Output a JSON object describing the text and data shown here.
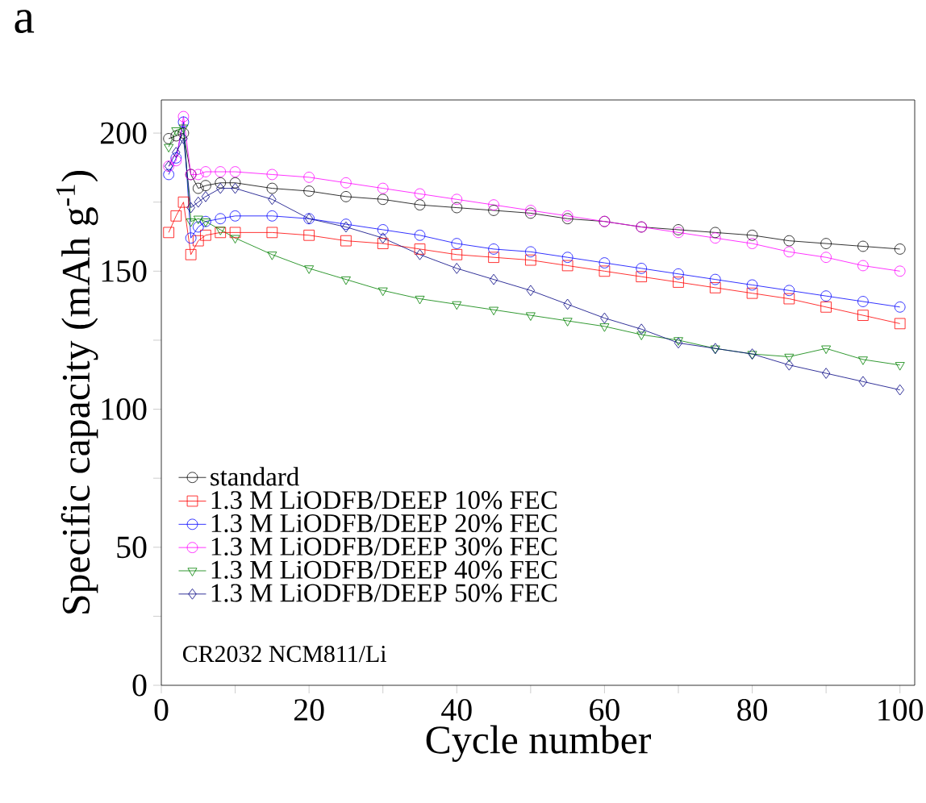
{
  "chart_data": {
    "type": "line",
    "title": "a",
    "xlabel": "Cycle number",
    "ylabel": "Specific capacity (mAh g$^{-1}$)",
    "x": [
      1,
      2,
      3,
      4,
      5,
      6,
      8,
      10,
      15,
      20,
      25,
      30,
      35,
      40,
      45,
      50,
      55,
      60,
      65,
      70,
      75,
      80,
      85,
      90,
      95,
      100
    ],
    "series": [
      {
        "name": "standard",
        "color": "#000000",
        "marker": "circle",
        "values": [
          198,
          199,
          200,
          185,
          180,
          181,
          182,
          182,
          180,
          179,
          177,
          176,
          174,
          173,
          172,
          171,
          169,
          168,
          166,
          165,
          164,
          163,
          161,
          160,
          159,
          158
        ]
      },
      {
        "name": "1.3 M LiODFB/DEEP 10% FEC",
        "color": "#ff0000",
        "marker": "square",
        "values": [
          164,
          170,
          175,
          156,
          161,
          163,
          164,
          164,
          164,
          163,
          161,
          160,
          158,
          156,
          155,
          154,
          152,
          150,
          148,
          146,
          144,
          142,
          140,
          137,
          134,
          131
        ]
      },
      {
        "name": "1.3 M LiODFB/DEEP 20% FEC",
        "color": "#0000ff",
        "marker": "circle",
        "values": [
          185,
          191,
          204,
          162,
          166,
          168,
          169,
          170,
          170,
          169,
          167,
          165,
          163,
          160,
          158,
          157,
          155,
          153,
          151,
          149,
          147,
          145,
          143,
          141,
          139,
          137
        ]
      },
      {
        "name": "1.3 M LiODFB/DEEP 30% FEC",
        "color": "#ff00ff",
        "marker": "circle",
        "values": [
          188,
          190,
          206,
          185,
          185,
          186,
          186,
          186,
          185,
          184,
          182,
          180,
          178,
          176,
          174,
          172,
          170,
          168,
          166,
          164,
          162,
          160,
          157,
          155,
          152,
          150
        ]
      },
      {
        "name": "1.3 M LiODFB/DEEP 40% FEC",
        "color": "#008000",
        "marker": "triangle",
        "values": [
          195,
          201,
          202,
          168,
          169,
          168,
          165,
          162,
          156,
          151,
          147,
          143,
          140,
          138,
          136,
          134,
          132,
          130,
          127,
          125,
          122,
          120,
          119,
          122,
          118,
          116
        ]
      },
      {
        "name": "1.3 M LiODFB/DEEP 50% FEC",
        "color": "#000080",
        "marker": "diamond",
        "values": [
          188,
          193,
          198,
          173,
          175,
          177,
          180,
          180,
          176,
          169,
          166,
          162,
          156,
          151,
          147,
          143,
          138,
          133,
          129,
          124,
          122,
          120,
          116,
          113,
          110,
          107
        ]
      }
    ],
    "xlim": [
      0,
      102
    ],
    "ylim": [
      0,
      212
    ],
    "xticks": [
      0,
      {
        "value": 10,
        "label": null
      },
      20,
      {
        "value": 30,
        "label": null
      },
      40,
      {
        "value": 50,
        "label": null
      },
      60,
      {
        "value": 70,
        "label": null
      },
      80,
      {
        "value": 90,
        "label": null
      },
      100
    ],
    "yticks": [
      0,
      {
        "value": 25,
        "label": null
      },
      50,
      {
        "value": 75,
        "label": null
      },
      100,
      {
        "value": 125,
        "label": null
      },
      150,
      {
        "value": 175,
        "label": null
      },
      200
    ],
    "legend": "bottom left",
    "line_style": "solid",
    "annotations": [
      "CR2032 NCM811/Li"
    ]
  }
}
